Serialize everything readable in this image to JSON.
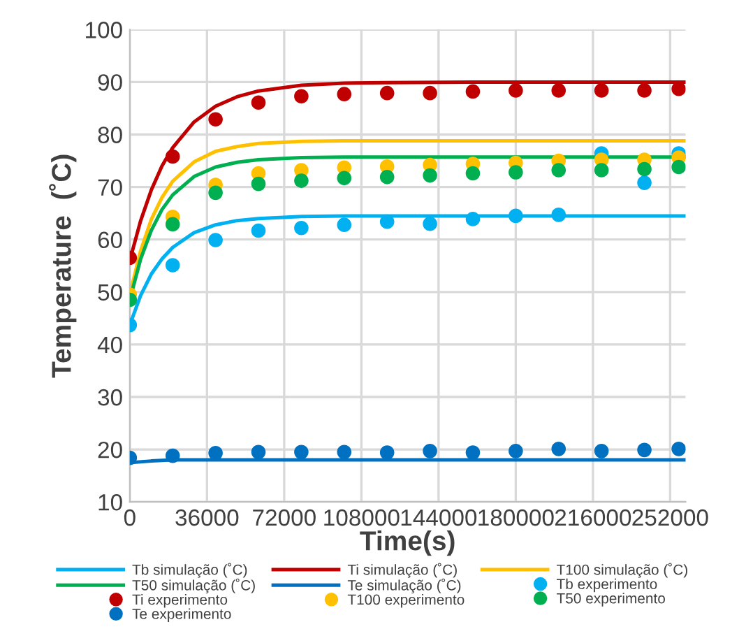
{
  "chart_data": {
    "type": "line",
    "xlabel": "Time(s)",
    "ylabel": "Temperature  (˚C)",
    "xlim": [
      0,
      259200
    ],
    "ylim": [
      10,
      100
    ],
    "xticks": [
      0,
      36000,
      72000,
      108000,
      144000,
      180000,
      216000,
      252000
    ],
    "yticks": [
      10,
      20,
      30,
      40,
      50,
      60,
      70,
      80,
      90,
      100
    ],
    "grid": true,
    "legend": "bottom",
    "x": [
      0,
      20000,
      40000,
      60000,
      80000,
      100000,
      120000,
      140000,
      160000,
      180000,
      200000,
      220000,
      240000,
      256000
    ],
    "series": [
      {
        "name": "Tb simulação (˚C)",
        "color": "#00b0f0",
        "line_style": "solid",
        "x": [
          0,
          5000,
          10000,
          15000,
          20000,
          30000,
          40000,
          50000,
          60000,
          80000,
          100000,
          120000,
          160000,
          200000,
          259200
        ],
        "values": [
          43.7,
          49.3,
          53.4,
          56.3,
          58.5,
          61.3,
          62.8,
          63.6,
          64.0,
          64.4,
          64.5,
          64.5,
          64.5,
          64.5,
          64.5
        ]
      },
      {
        "name": "Ti simulação (˚C)",
        "color": "#c00000",
        "line_style": "solid",
        "x": [
          0,
          5000,
          10000,
          15000,
          20000,
          30000,
          40000,
          50000,
          60000,
          80000,
          100000,
          120000,
          160000,
          200000,
          259200
        ],
        "values": [
          56,
          63.5,
          69.4,
          74.0,
          77.5,
          82.4,
          85.4,
          87.2,
          88.3,
          89.4,
          89.8,
          89.9,
          90,
          90,
          90
        ]
      },
      {
        "name": "T100 simulação (˚C)",
        "color": "#ffc000",
        "line_style": "solid",
        "x": [
          0,
          5000,
          10000,
          15000,
          20000,
          30000,
          40000,
          50000,
          60000,
          80000,
          100000,
          120000,
          160000,
          200000,
          259200
        ],
        "values": [
          49.5,
          57.8,
          63.8,
          68.0,
          71.1,
          74.8,
          76.8,
          77.7,
          78.3,
          78.7,
          78.8,
          78.8,
          78.8,
          78.8,
          78.8
        ]
      },
      {
        "name": "T50 simulação (˚C)",
        "color": "#00b050",
        "line_style": "solid",
        "x": [
          0,
          5000,
          10000,
          15000,
          20000,
          30000,
          40000,
          50000,
          60000,
          80000,
          100000,
          120000,
          160000,
          200000,
          259200
        ],
        "values": [
          48.5,
          56.2,
          61.7,
          65.7,
          68.5,
          72.0,
          73.8,
          74.7,
          75.2,
          75.6,
          75.7,
          75.7,
          75.7,
          75.7,
          75.7
        ]
      },
      {
        "name": "Te simulação (˚C)",
        "color": "#0070c0",
        "line_style": "solid",
        "x": [
          0,
          10000,
          20000,
          60000,
          120000,
          200000,
          259200
        ],
        "values": [
          17.5,
          17.8,
          18.0,
          18.0,
          18.0,
          18.0,
          18.0
        ]
      },
      {
        "name": "Tb experimento",
        "type": "scatter",
        "marker": "circle",
        "color": "#00b0f0",
        "values": [
          43.7,
          55.1,
          59.9,
          61.7,
          62.2,
          62.8,
          63.4,
          63.0,
          63.9,
          64.5,
          64.7,
          76.4,
          70.8,
          76.4
        ]
      },
      {
        "name": "Ti experimento",
        "type": "scatter",
        "marker": "circle",
        "color": "#c00000",
        "values": [
          56.5,
          75.8,
          82.9,
          86.1,
          87.3,
          87.7,
          87.9,
          87.9,
          88.2,
          88.4,
          88.4,
          88.4,
          88.4,
          88.7
        ]
      },
      {
        "name": "T100 experimento",
        "type": "scatter",
        "marker": "circle",
        "color": "#ffc000",
        "values": [
          49.5,
          64.3,
          70.4,
          72.6,
          73.2,
          73.7,
          73.9,
          74.2,
          74.4,
          74.6,
          75.0,
          75.2,
          75.2,
          75.6
        ]
      },
      {
        "name": "T50 experimento",
        "type": "scatter",
        "marker": "circle",
        "color": "#00b050",
        "values": [
          48.5,
          62.9,
          68.9,
          70.6,
          71.2,
          71.7,
          71.9,
          72.2,
          72.6,
          72.8,
          73.2,
          73.2,
          73.4,
          73.8
        ]
      },
      {
        "name": "Te experimento",
        "type": "scatter",
        "marker": "circle",
        "color": "#0070c0",
        "values": [
          18.4,
          18.8,
          19.3,
          19.5,
          19.5,
          19.5,
          19.4,
          19.7,
          19.4,
          19.7,
          20.1,
          19.7,
          19.9,
          20.1
        ]
      }
    ]
  }
}
